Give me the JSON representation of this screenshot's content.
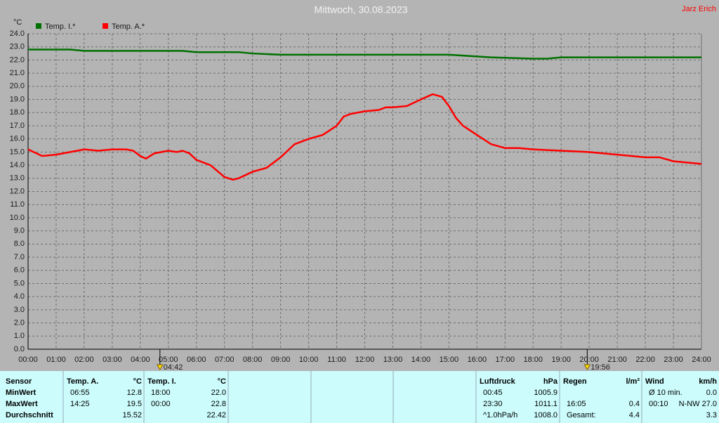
{
  "header": {
    "author": "Jarz Erich"
  },
  "chart_data": {
    "type": "line",
    "title": "Mittwoch, 30.08.2023",
    "ylabel": "°C",
    "legend": "top-left",
    "grid": true,
    "xlim": [
      0,
      24
    ],
    "ylim": [
      0,
      24
    ],
    "xticks": [
      {
        "value": 0,
        "label": "00:00"
      },
      {
        "value": 1,
        "label": "01:00"
      },
      {
        "value": 2,
        "label": "02:00"
      },
      {
        "value": 3,
        "label": "03:00"
      },
      {
        "value": 4,
        "label": "04:00"
      },
      {
        "value": 5,
        "label": "05:00"
      },
      {
        "value": 6,
        "label": "06:00"
      },
      {
        "value": 7,
        "label": "07:00"
      },
      {
        "value": 8,
        "label": "08:00"
      },
      {
        "value": 9,
        "label": "09:00"
      },
      {
        "value": 10,
        "label": "10:00"
      },
      {
        "value": 11,
        "label": "11:00"
      },
      {
        "value": 12,
        "label": "12:00"
      },
      {
        "value": 13,
        "label": "13:00"
      },
      {
        "value": 14,
        "label": "14:00"
      },
      {
        "value": 15,
        "label": "15:00"
      },
      {
        "value": 16,
        "label": "16:00"
      },
      {
        "value": 17,
        "label": "17:00"
      },
      {
        "value": 18,
        "label": "18:00"
      },
      {
        "value": 19,
        "label": "19:00"
      },
      {
        "value": 20,
        "label": "20:00"
      },
      {
        "value": 21,
        "label": "21:00"
      },
      {
        "value": 22,
        "label": "22:00"
      },
      {
        "value": 23,
        "label": "23:00"
      },
      {
        "value": 24,
        "label": "24:00"
      }
    ],
    "yticks": [
      {
        "value": 0,
        "label": "0.0"
      },
      {
        "value": 1,
        "label": "1.0"
      },
      {
        "value": 2,
        "label": "2.0"
      },
      {
        "value": 3,
        "label": "3.0"
      },
      {
        "value": 4,
        "label": "4.0"
      },
      {
        "value": 5,
        "label": "5.0"
      },
      {
        "value": 6,
        "label": "6.0"
      },
      {
        "value": 7,
        "label": "7.0"
      },
      {
        "value": 8,
        "label": "8.0"
      },
      {
        "value": 9,
        "label": "9.0"
      },
      {
        "value": 10,
        "label": "10.0"
      },
      {
        "value": 11,
        "label": "11.0"
      },
      {
        "value": 12,
        "label": "12.0"
      },
      {
        "value": 13,
        "label": "13.0"
      },
      {
        "value": 14,
        "label": "14.0"
      },
      {
        "value": 15,
        "label": "15.0"
      },
      {
        "value": 16,
        "label": "16.0"
      },
      {
        "value": 17,
        "label": "17.0"
      },
      {
        "value": 18,
        "label": "18.0"
      },
      {
        "value": 19,
        "label": "19.0"
      },
      {
        "value": 20,
        "label": "20.0"
      },
      {
        "value": 21,
        "label": "21.0"
      },
      {
        "value": 22,
        "label": "22.0"
      },
      {
        "value": 23,
        "label": "23.0"
      },
      {
        "value": 24,
        "label": "24.0"
      }
    ],
    "series": [
      {
        "name": "Temp. I.*",
        "color": "#007000",
        "x": [
          0,
          1.5,
          2,
          5.5,
          6,
          7.5,
          8,
          9,
          13,
          13.5,
          15,
          16.5,
          18,
          18.5,
          19,
          24
        ],
        "values": [
          22.8,
          22.8,
          22.7,
          22.7,
          22.6,
          22.6,
          22.5,
          22.4,
          22.4,
          22.4,
          22.4,
          22.2,
          22.1,
          22.1,
          22.2,
          22.2
        ]
      },
      {
        "name": "Temp. A.*",
        "color": "#ff0000",
        "x": [
          0,
          0.5,
          1,
          1.5,
          2,
          2.5,
          3,
          3.5,
          3.75,
          4,
          4.2,
          4.5,
          5,
          5.3,
          5.5,
          5.75,
          6,
          6.5,
          7,
          7.3,
          7.5,
          8,
          8.5,
          9,
          9.5,
          10,
          10.5,
          11,
          11.25,
          11.5,
          12,
          12.5,
          12.75,
          13,
          13.5,
          14,
          14.42,
          14.75,
          15,
          15.25,
          15.5,
          16,
          16.5,
          17,
          17.5,
          18,
          19,
          20,
          21,
          22,
          22.5,
          23,
          23.5,
          24
        ],
        "values": [
          15.2,
          14.7,
          14.8,
          15.0,
          15.2,
          15.1,
          15.2,
          15.2,
          15.1,
          14.7,
          14.5,
          14.9,
          15.1,
          15.0,
          15.1,
          14.9,
          14.4,
          14.0,
          13.1,
          12.9,
          13.0,
          13.5,
          13.8,
          14.6,
          15.6,
          16.0,
          16.3,
          17.0,
          17.7,
          17.9,
          18.1,
          18.2,
          18.4,
          18.4,
          18.5,
          19.0,
          19.4,
          19.2,
          18.5,
          17.6,
          17.0,
          16.3,
          15.6,
          15.3,
          15.3,
          15.2,
          15.1,
          15.0,
          14.8,
          14.6,
          14.6,
          14.3,
          14.2,
          14.1
        ]
      }
    ],
    "annotations": [
      {
        "x": 4.7,
        "label": "04:42"
      },
      {
        "x": 19.93,
        "label": "19:56"
      }
    ]
  },
  "table": {
    "header": "Sensor",
    "row_labels": [
      "MinWert",
      "MaxWert",
      "Durchschnitt"
    ],
    "columns": [
      {
        "name": "Temp. A.",
        "unit": "°C",
        "rows": [
          [
            "06:55",
            "12.8"
          ],
          [
            "14:25",
            "19.5"
          ],
          [
            null,
            "15.52"
          ]
        ]
      },
      {
        "name": "Temp. I.",
        "unit": "°C",
        "rows": [
          [
            "18:00",
            "22.0"
          ],
          [
            "00:00",
            "22.8"
          ],
          [
            null,
            "22.42"
          ]
        ]
      },
      {
        "name": "Luftdruck",
        "unit": "hPa",
        "rows": [
          [
            "00:45",
            "1005.9"
          ],
          [
            "23:30",
            "1011.1"
          ],
          [
            "^1.0hPa/h",
            "1008.0"
          ]
        ]
      },
      {
        "name": "Regen",
        "unit": "l/m²",
        "rows": [
          [
            null,
            null
          ],
          [
            "16:05",
            "0.4"
          ],
          [
            "Gesamt:",
            "4.4"
          ]
        ]
      },
      {
        "name": "Wind",
        "unit": "km/h",
        "rows": [
          [
            "Ø 10 min.",
            "0.0"
          ],
          [
            "00:10",
            "N-NW 27.0"
          ],
          [
            null,
            "3.3"
          ]
        ]
      }
    ]
  }
}
